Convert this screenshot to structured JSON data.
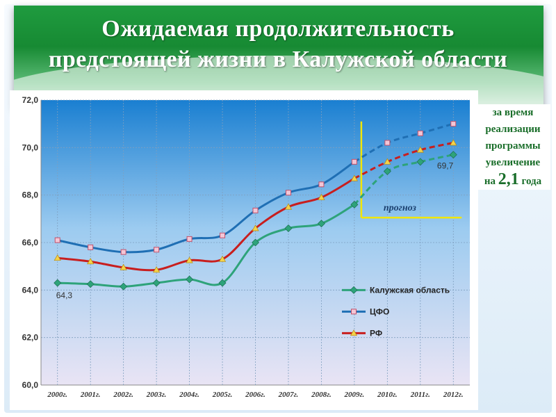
{
  "title": {
    "line1": "Ожидаемая продолжительность",
    "line2": "предстоящей жизни в Калужской области"
  },
  "side_note": {
    "line1": "за время",
    "line2": "реализации",
    "line3": "программы",
    "line4": "увеличение",
    "line5_prefix": "на",
    "line5_value": "2,1",
    "line5_suffix": "года"
  },
  "chart_data": {
    "type": "line",
    "categories": [
      "2000г.",
      "2001г.",
      "2002г.",
      "2003г.",
      "2004г.",
      "2005г.",
      "2006г.",
      "2007г.",
      "2008г.",
      "2009г.",
      "2010г.",
      "2011г.",
      "2012г."
    ],
    "ylim": [
      60,
      72
    ],
    "yticks": [
      "60,0",
      "62,0",
      "64,0",
      "66,0",
      "68,0",
      "70,0",
      "72,0"
    ],
    "grid": true,
    "legend_position": "lower-right",
    "forecast_start_index": 9,
    "forecast_label": "прогноз",
    "series": [
      {
        "name": "Калужская область",
        "color": "#2ea37a",
        "marker": "diamond",
        "values": [
          64.3,
          64.25,
          64.15,
          64.3,
          64.45,
          64.3,
          66.0,
          66.6,
          66.8,
          67.6,
          69.0,
          69.4,
          69.7
        ]
      },
      {
        "name": "ЦФО",
        "color": "#1f6fb4",
        "marker": "square",
        "values": [
          66.1,
          65.8,
          65.6,
          65.7,
          66.15,
          66.3,
          67.35,
          68.1,
          68.45,
          69.4,
          70.2,
          70.6,
          71.0
        ]
      },
      {
        "name": "РФ",
        "color": "#c81e1e",
        "marker": "triangle",
        "values": [
          65.35,
          65.2,
          64.95,
          64.85,
          65.25,
          65.3,
          66.6,
          67.5,
          67.9,
          68.7,
          69.4,
          69.9,
          70.2
        ]
      }
    ],
    "annotations": [
      {
        "text": "64,3",
        "series": 0,
        "index": 0
      },
      {
        "text": "69,7",
        "series": 0,
        "index": 12
      }
    ]
  }
}
